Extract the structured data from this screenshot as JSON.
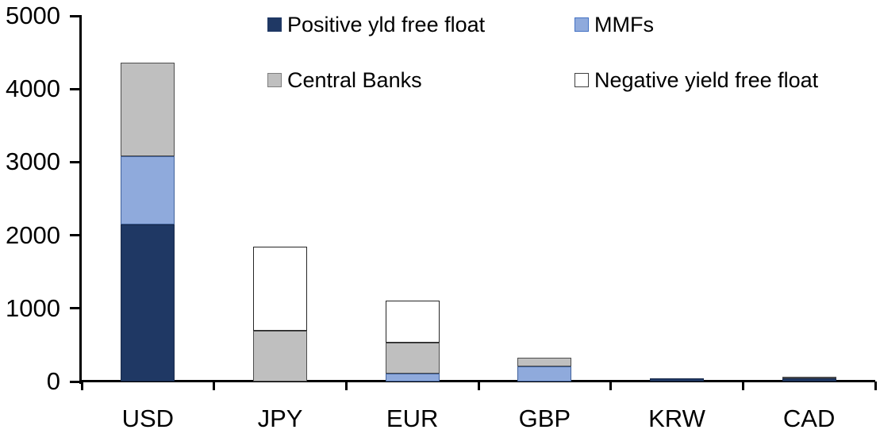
{
  "chart_data": {
    "type": "bar",
    "stacked": true,
    "title": "",
    "xlabel": "",
    "ylabel": "",
    "ylim": [
      0,
      5000
    ],
    "y_ticks": [
      0,
      1000,
      2000,
      3000,
      4000,
      5000
    ],
    "grid": false,
    "legend_position": "top-two-column",
    "categories": [
      "USD",
      "JPY",
      "EUR",
      "GBP",
      "KRW",
      "CAD"
    ],
    "series": [
      {
        "name": "Positive yld free float",
        "color": "#1F3864",
        "border": "#17294A",
        "legend_border": "#1F3864",
        "values": [
          2150,
          0,
          0,
          0,
          40,
          45
        ]
      },
      {
        "name": "MMFs",
        "color": "#8FAADC",
        "border": "#41629B",
        "legend_border": "#4472C4",
        "values": [
          930,
          0,
          105,
          210,
          0,
          0
        ]
      },
      {
        "name": "Central Banks",
        "color": "#BFBFBF",
        "border": "#4D4D4D",
        "legend_border": "#7F7F7F",
        "values": [
          1280,
          690,
          425,
          110,
          0,
          20
        ]
      },
      {
        "name": "Negative yield free float",
        "color": "#FFFFFF",
        "border": "#262626",
        "legend_border": "#404040",
        "values": [
          0,
          1150,
          580,
          0,
          0,
          0
        ]
      }
    ],
    "totals": [
      4360,
      1840,
      1110,
      320,
      40,
      65
    ],
    "axis_color": "#000000",
    "text_color": "#000000"
  }
}
